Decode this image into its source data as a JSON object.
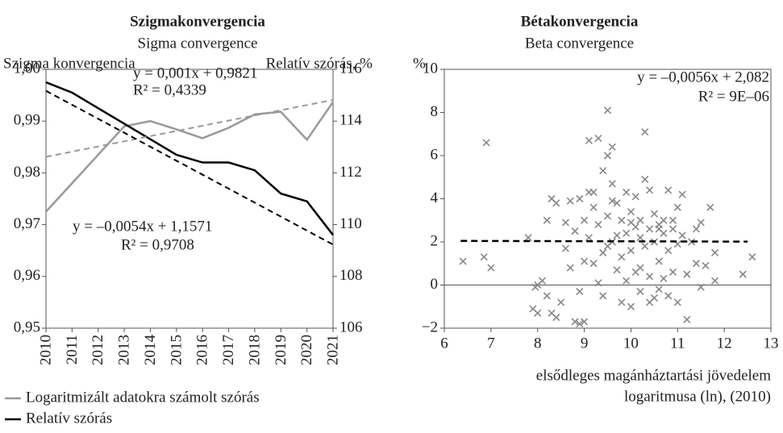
{
  "chart_data": [
    {
      "type": "line",
      "title": "Szigmakonvergencia",
      "subtitle": "Sigma convergence",
      "ylabel": "Szigma konvergencia",
      "y2label": "Relatív szórás, %",
      "categories": [
        "2010",
        "2011",
        "2012",
        "2013",
        "2014",
        "2015",
        "2016",
        "2017",
        "2018",
        "2019",
        "2020",
        "2021"
      ],
      "ylim": [
        0.95,
        1.0
      ],
      "yticks": [
        {
          "value": 0.95,
          "label": "0,95"
        },
        {
          "value": 0.96,
          "label": "0,96"
        },
        {
          "value": 0.97,
          "label": "0,97"
        },
        {
          "value": 0.98,
          "label": "0,98"
        },
        {
          "value": 0.99,
          "label": "0,99"
        },
        {
          "value": 1.0,
          "label": "1,00"
        }
      ],
      "y2lim": [
        106,
        116
      ],
      "y2ticks": [
        106,
        108,
        110,
        112,
        114,
        116
      ],
      "series": [
        {
          "name": "Logaritmizált adatokra számolt szórás",
          "color": "#999999",
          "axis": "y",
          "values": [
            0.9725,
            0.978,
            0.9835,
            0.989,
            0.99,
            0.9884,
            0.9867,
            0.9887,
            0.9913,
            0.9918,
            0.9864,
            0.9937
          ]
        },
        {
          "name": "Relatív szórás",
          "color": "#000000",
          "axis": "y2",
          "values": [
            115.5,
            115.1,
            114.5,
            113.9,
            113.3,
            112.7,
            112.4,
            112.4,
            112.1,
            111.2,
            110.9,
            109.6
          ]
        }
      ],
      "trendlines": [
        {
          "axis": "y",
          "color": "#999999",
          "values": [
            0.9831,
            0.9941
          ],
          "label": "y = 0,001x + 0,9821",
          "r2": "R² = 0,4339"
        },
        {
          "axis": "y2",
          "color": "#000000",
          "values": [
            115.17,
            109.23
          ],
          "label": "y = –0,0054x + 1,1571",
          "r2": "R² = 0,9708"
        }
      ],
      "legend": "bottom-left"
    },
    {
      "type": "scatter",
      "title": "Bétakonvergencia",
      "subtitle": "Beta convergence",
      "ylabel": "%",
      "xlabel": [
        "elsődleges magánháztartási jövedelem",
        "logaritmusa (ln), (2010)"
      ],
      "xlim": [
        6,
        13
      ],
      "xticks": [
        6,
        7,
        8,
        9,
        10,
        11,
        12,
        13
      ],
      "ylim": [
        -2,
        10
      ],
      "yticks": [
        {
          "value": -2,
          "label": "−2"
        },
        0,
        2,
        4,
        6,
        8,
        10
      ],
      "series": [
        {
          "color": "#888888",
          "x": [
            6.4,
            6.9,
            6.85,
            7.0,
            7.8,
            7.9,
            8.0,
            7.95,
            8.1,
            8.2,
            8.3,
            8.4,
            8.2,
            8.3,
            8.5,
            8.4,
            8.6,
            8.7,
            8.6,
            8.7,
            8.8,
            8.9,
            9.0,
            8.9,
            8.8,
            8.9,
            9.0,
            9.1,
            9.1,
            9.0,
            9.2,
            9.2,
            9.3,
            9.3,
            9.4,
            9.4,
            9.5,
            9.5,
            9.5,
            9.4,
            9.6,
            9.6,
            9.6,
            9.7,
            9.7,
            9.8,
            9.8,
            9.8,
            9.9,
            9.9,
            9.9,
            10.0,
            10.0,
            10.0,
            10.1,
            10.1,
            10.1,
            10.2,
            10.2,
            10.2,
            10.3,
            10.3,
            10.3,
            10.4,
            10.4,
            10.4,
            10.5,
            10.5,
            10.5,
            10.6,
            10.6,
            10.6,
            10.7,
            10.7,
            10.7,
            10.8,
            10.8,
            10.8,
            10.9,
            10.9,
            11.0,
            11.0,
            11.0,
            11.1,
            11.1,
            11.2,
            11.2,
            11.3,
            11.4,
            11.5,
            11.5,
            11.6,
            11.7,
            11.8,
            11.8,
            12.4,
            12.6,
            9.2,
            9.1,
            10.0,
            10.6,
            9.7,
            10.2,
            9.3,
            11.4,
            9.6,
            10.4,
            8.0,
            9.5,
            10.9
          ],
          "values": [
            1.1,
            6.6,
            1.3,
            0.8,
            2.2,
            -1.1,
            -1.3,
            -0.1,
            0.2,
            -0.5,
            4.0,
            3.8,
            3.0,
            -1.3,
            -0.8,
            -1.5,
            1.7,
            3.9,
            2.9,
            0.8,
            -1.7,
            -1.8,
            -1.7,
            -0.3,
            2.5,
            4.0,
            3.0,
            6.7,
            2.2,
            1.1,
            3.6,
            4.3,
            2.8,
            6.8,
            5.3,
            1.5,
            8.1,
            6.0,
            3.2,
            -0.5,
            4.7,
            6.4,
            2.0,
            3.8,
            0.7,
            3.0,
            1.3,
            -0.8,
            4.3,
            2.4,
            0.2,
            3.4,
            1.6,
            -1.0,
            2.7,
            4.1,
            0.6,
            2.2,
            -0.3,
            3.0,
            4.9,
            1.8,
            7.1,
            2.6,
            0.4,
            4.4,
            2.0,
            -0.6,
            3.3,
            2.8,
            1.1,
            -0.2,
            3.0,
            2.4,
            0.3,
            4.4,
            1.6,
            -0.5,
            2.6,
            0.6,
            3.6,
            1.9,
            -0.8,
            4.2,
            2.3,
            0.5,
            -1.6,
            2.0,
            1.0,
            2.9,
            -0.1,
            0.9,
            3.6,
            1.5,
            0.2,
            0.5,
            1.3,
            1.0,
            4.3,
            2.9,
            2.6,
            2.3,
            0.8,
            0.1,
            2.6,
            3.9,
            -0.8,
            0.0,
            1.8,
            3.0
          ]
        }
      ],
      "trendline": {
        "color": "#000000",
        "x": [
          6.35,
          12.5
        ],
        "values": [
          2.046,
          2.012
        ],
        "label": "y = –0,0056x + 2,082",
        "r2": "R² = 9E–06"
      }
    }
  ]
}
